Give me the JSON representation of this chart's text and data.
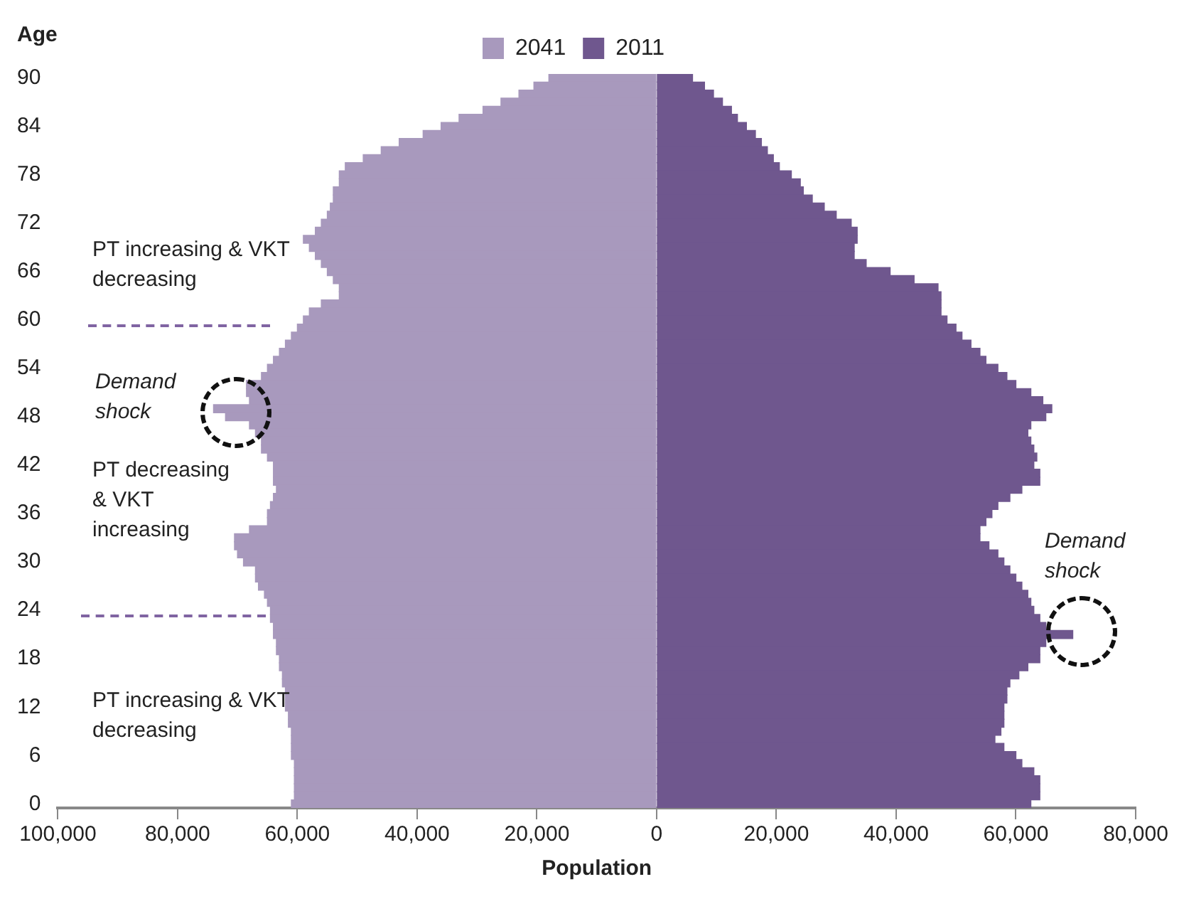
{
  "chart_data": {
    "type": "bar",
    "orientation": "horizontal",
    "stacked": true,
    "legend": "top",
    "xlabel": "Population",
    "ylabel": "Age",
    "categories": [
      "90",
      null,
      null,
      null,
      null,
      null,
      "84",
      null,
      null,
      null,
      null,
      null,
      "78",
      null,
      null,
      null,
      null,
      null,
      "72",
      null,
      null,
      null,
      null,
      null,
      "66",
      null,
      null,
      null,
      null,
      null,
      "60",
      null,
      null,
      null,
      null,
      null,
      "54",
      null,
      null,
      null,
      null,
      null,
      "48",
      null,
      null,
      null,
      null,
      null,
      "42",
      null,
      null,
      null,
      null,
      null,
      "36",
      null,
      null,
      null,
      null,
      null,
      "30",
      null,
      null,
      null,
      null,
      null,
      "24",
      null,
      null,
      null,
      null,
      null,
      "18",
      null,
      null,
      null,
      null,
      null,
      "12",
      null,
      null,
      null,
      null,
      null,
      "6",
      null,
      null,
      null,
      null,
      null,
      "0"
    ],
    "series": [
      {
        "name": "2041",
        "color": "#a899bd",
        "values": [
          -18000,
          -20500,
          -23000,
          -26000,
          -29000,
          -33000,
          -36000,
          -39000,
          -43000,
          -46000,
          -49000,
          -52000,
          -53000,
          -53000,
          -54000,
          -54000,
          -54500,
          -55000,
          -56000,
          -57000,
          -59000,
          -58000,
          -57000,
          -56000,
          -55000,
          -54000,
          -53000,
          -53000,
          -56000,
          -58000,
          -59000,
          -60000,
          -61000,
          -62000,
          -63000,
          -64000,
          -65000,
          -66000,
          -68500,
          -68500,
          -68000,
          -74000,
          -72000,
          -68000,
          -67000,
          -66000,
          -66000,
          -65000,
          -64000,
          -64000,
          -64000,
          -63500,
          -64000,
          -64500,
          -65000,
          -65000,
          -68000,
          -70500,
          -70500,
          -70000,
          -69000,
          -67000,
          -67000,
          -66500,
          -65500,
          -65000,
          -64500,
          -64500,
          -64000,
          -64000,
          -63500,
          -63500,
          -63000,
          -63000,
          -62500,
          -62500,
          -62000,
          -62000,
          -62000,
          -61500,
          -61500,
          -61000,
          -61000,
          -61000,
          -61000,
          -60500,
          -60500,
          -60500,
          -60500,
          -60500,
          -61000
        ]
      },
      {
        "name": "2011",
        "color": "#6f578e",
        "values": [
          6000,
          8000,
          9500,
          11000,
          12500,
          13500,
          15000,
          16500,
          17500,
          18500,
          19500,
          20500,
          22500,
          24000,
          24500,
          26000,
          28000,
          30000,
          32500,
          33500,
          33500,
          33000,
          33000,
          35000,
          39000,
          43000,
          47000,
          47500,
          47500,
          47500,
          48500,
          50000,
          51000,
          52500,
          54000,
          55000,
          57000,
          58500,
          60000,
          62500,
          64500,
          66000,
          65000,
          62500,
          62000,
          62500,
          63000,
          63500,
          63000,
          64000,
          64000,
          61000,
          59000,
          57000,
          56000,
          55000,
          54000,
          54000,
          55500,
          57000,
          58000,
          59000,
          60000,
          61000,
          62000,
          62500,
          63000,
          64000,
          65000,
          69500,
          65000,
          64000,
          64000,
          62000,
          60500,
          59000,
          58500,
          58500,
          58000,
          58000,
          58000,
          57500,
          56500,
          58000,
          60000,
          61000,
          63000,
          64000,
          64000,
          64000,
          62500
        ]
      }
    ],
    "xlim": [
      -100000,
      80000
    ],
    "xticks": [
      {
        "value": -100000,
        "label": "100,000"
      },
      {
        "value": -80000,
        "label": "80,000"
      },
      {
        "value": -60000,
        "label": "60,000"
      },
      {
        "value": -40000,
        "label": "40,000"
      },
      {
        "value": -20000,
        "label": "20,000"
      },
      0,
      {
        "value": 20000,
        "label": "20,000"
      },
      {
        "value": 40000,
        "label": "40,000"
      },
      {
        "value": 60000,
        "label": "60,000"
      },
      {
        "value": 80000,
        "label": "80,000"
      }
    ],
    "annotations": [
      "PT increasing & VKT decreasing",
      "Demand shock",
      "PT decreasing & VKT increasing",
      "PT increasing & VKT decreasing",
      "Demand shock"
    ]
  }
}
